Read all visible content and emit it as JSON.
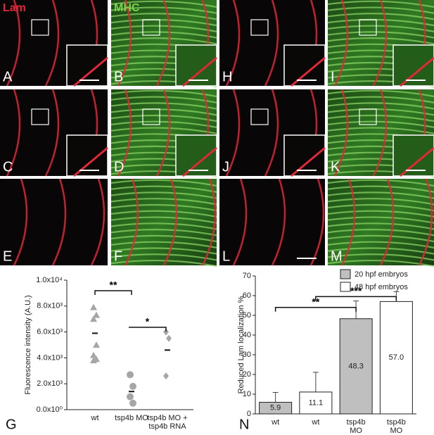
{
  "figure": {
    "channel_labels": [
      "Lam",
      "MHC"
    ],
    "panel_letters": [
      "A",
      "B",
      "H",
      "I",
      "C",
      "D",
      "J",
      "K",
      "E",
      "F",
      "L",
      "M"
    ],
    "chart_letters": [
      "G",
      "N"
    ]
  },
  "chart_data": [
    {
      "type": "dotplot",
      "ylabel": "Fluorescence intensity (A.U.)",
      "categories": [
        [
          "wt"
        ],
        [
          "tsp4b MO"
        ],
        [
          "tsp4b MO +",
          "tsp4b RNA"
        ]
      ],
      "points": [
        [
          7900,
          7300,
          7000,
          5000,
          4200,
          3900,
          3800
        ],
        [
          2700,
          1800,
          1000,
          500
        ],
        [
          6000,
          5500,
          2600
        ]
      ],
      "means": [
        5900,
        1400,
        4600
      ],
      "markers": [
        "triangle",
        "circle",
        "diamond"
      ],
      "color": "#a6a6a6",
      "ylim": [
        0,
        10000
      ],
      "yticks": [
        {
          "value": 0,
          "label": "0.0x10⁰"
        },
        {
          "value": 2000,
          "label": "2.0x10³"
        },
        {
          "value": 4000,
          "label": "4.0x10³"
        },
        {
          "value": 6000,
          "label": "6.0x10³"
        },
        {
          "value": 8000,
          "label": "8.0x10³"
        },
        {
          "value": 10000,
          "label": "1.0x10⁴"
        }
      ],
      "annotations": [
        "**",
        "*"
      ]
    },
    {
      "type": "bar",
      "ylabel": "Reduced Lam localization %",
      "categories": [
        [
          "wt"
        ],
        [
          "wt"
        ],
        [
          "tsp4b",
          "MO"
        ],
        [
          "tsp4b",
          "MO"
        ]
      ],
      "series": [
        {
          "name": "20 hpf embryos",
          "color": "#bfbfbf",
          "values": [
            5.9,
            null,
            48.3,
            null
          ],
          "value_labels": [
            "5.9",
            null,
            "48.3",
            null
          ],
          "errors": [
            5,
            null,
            9,
            null
          ]
        },
        {
          "name": "48 hpf embryos",
          "color": "#ffffff",
          "values": [
            null,
            11.1,
            null,
            57.0
          ],
          "value_labels": [
            null,
            "11.1",
            null,
            "57.0"
          ],
          "errors": [
            null,
            10,
            null,
            5
          ]
        }
      ],
      "ylim": [
        0,
        70
      ],
      "yticks": [
        0,
        10,
        20,
        30,
        40,
        50,
        60,
        70
      ],
      "annotations": [
        "**",
        "***"
      ]
    }
  ]
}
